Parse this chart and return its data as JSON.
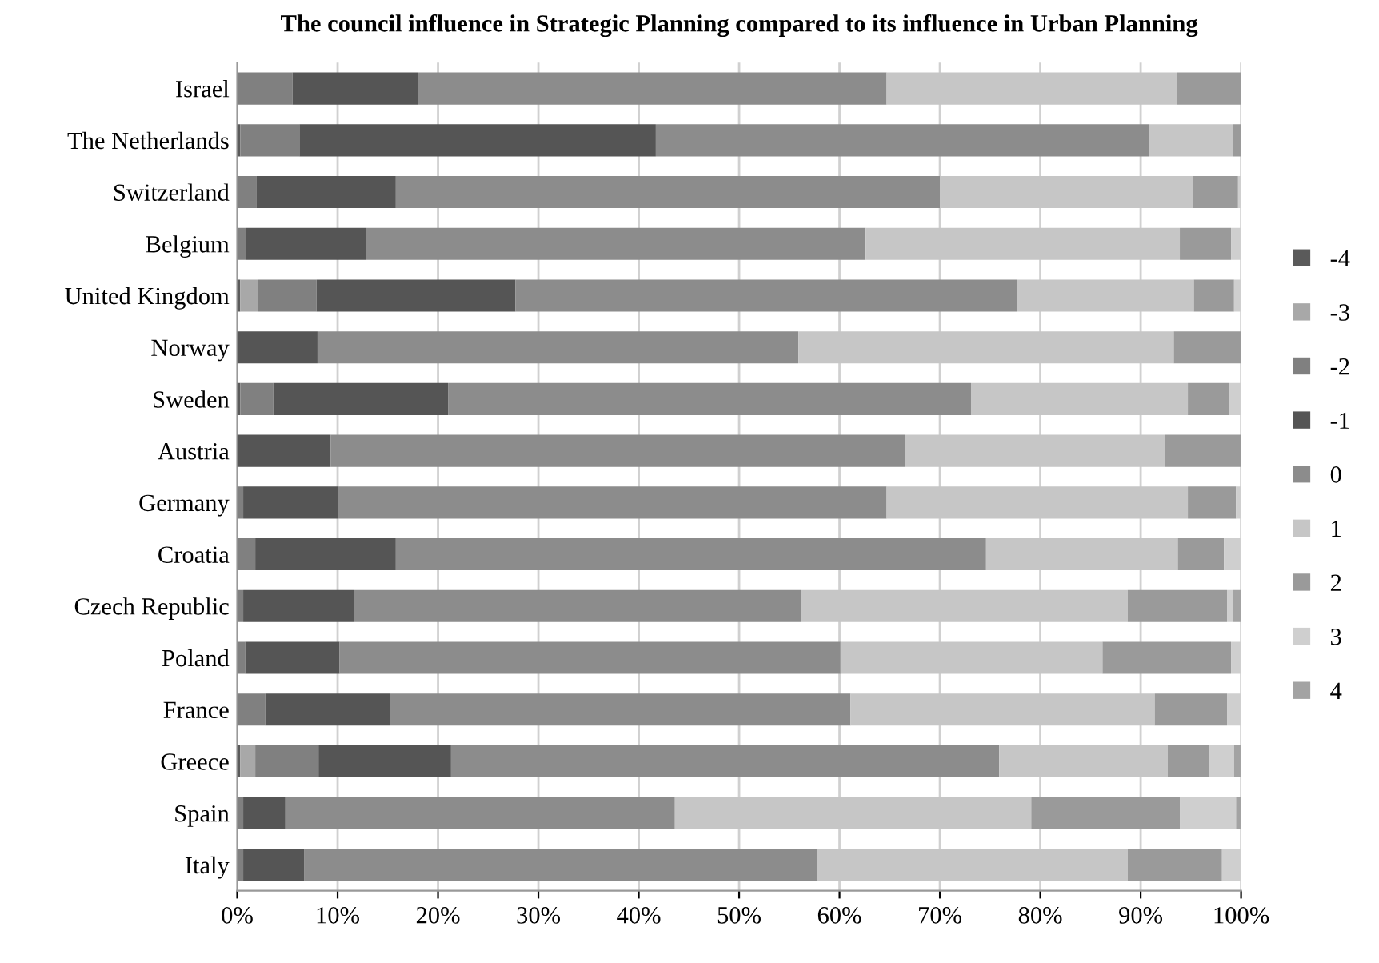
{
  "chart_data": {
    "type": "bar",
    "orientation": "horizontal",
    "stacked": true,
    "title": "The council influence in Strategic Planning compared to its influence in Urban Planning",
    "categories": [
      "Israel",
      "The Netherlands",
      "Switzerland",
      "Belgium",
      "United Kingdom",
      "Norway",
      "Sweden",
      "Austria",
      "Germany",
      "Croatia",
      "Czech Republic",
      "Poland",
      "France",
      "Greece",
      "Spain",
      "Italy"
    ],
    "series": [
      {
        "name": "-4",
        "color": "#5a5a5a",
        "values": [
          0,
          0.3,
          0,
          0,
          0.3,
          0,
          0.3,
          0,
          0,
          0,
          0,
          0,
          0,
          0.3,
          0,
          0
        ]
      },
      {
        "name": "-3",
        "color": "#a8a8a8",
        "values": [
          0,
          0,
          0,
          0,
          1.8,
          0,
          0,
          0,
          0,
          0,
          0,
          0,
          0,
          1.5,
          0,
          0
        ]
      },
      {
        "name": "-2",
        "color": "#808080",
        "values": [
          5.5,
          5.9,
          1.9,
          0.9,
          5.8,
          0,
          3.3,
          0,
          0.6,
          1.8,
          0.6,
          0.8,
          2.8,
          6.3,
          0.6,
          0.6
        ]
      },
      {
        "name": "-1",
        "color": "#555555",
        "values": [
          12.5,
          35.5,
          13.9,
          11.9,
          19.8,
          8.0,
          17.4,
          9.3,
          9.4,
          14.0,
          11.0,
          9.4,
          12.4,
          13.2,
          4.2,
          6.1
        ]
      },
      {
        "name": "0",
        "color": "#8c8c8c",
        "values": [
          46.7,
          49.1,
          54.2,
          49.8,
          50.0,
          47.9,
          52.1,
          57.2,
          54.7,
          58.8,
          44.6,
          49.9,
          45.9,
          54.6,
          38.8,
          51.1
        ]
      },
      {
        "name": "1",
        "color": "#c6c6c6",
        "values": [
          28.9,
          8.4,
          25.2,
          31.3,
          17.6,
          37.4,
          21.6,
          25.9,
          30.0,
          19.1,
          32.5,
          26.1,
          30.3,
          16.8,
          35.5,
          30.9
        ]
      },
      {
        "name": "2",
        "color": "#9a9a9a",
        "values": [
          6.4,
          0.8,
          4.5,
          5.1,
          4.0,
          6.7,
          4.1,
          7.6,
          4.8,
          4.6,
          9.9,
          12.8,
          7.2,
          4.1,
          14.8,
          9.4
        ]
      },
      {
        "name": "3",
        "color": "#cfcfcf",
        "values": [
          0,
          0,
          0.5,
          1.0,
          0.7,
          0,
          1.2,
          0,
          0.5,
          1.7,
          0.6,
          1.0,
          1.4,
          2.5,
          5.6,
          1.9
        ]
      },
      {
        "name": "4",
        "color": "#a3a3a3",
        "values": [
          0,
          0,
          0,
          0,
          0,
          0,
          0,
          0,
          0,
          0,
          0.8,
          0,
          0,
          0.7,
          0.5,
          0
        ]
      }
    ],
    "xlim": [
      0,
      100
    ],
    "xticks": [
      {
        "value": 0,
        "label": "0%"
      },
      {
        "value": 10,
        "label": "10%"
      },
      {
        "value": 20,
        "label": "20%"
      },
      {
        "value": 30,
        "label": "30%"
      },
      {
        "value": 40,
        "label": "40%"
      },
      {
        "value": 50,
        "label": "50%"
      },
      {
        "value": 60,
        "label": "60%"
      },
      {
        "value": 70,
        "label": "70%"
      },
      {
        "value": 80,
        "label": "80%"
      },
      {
        "value": 90,
        "label": "90%"
      },
      {
        "value": 100,
        "label": "100%"
      }
    ],
    "grid": "x",
    "legend": "right"
  }
}
